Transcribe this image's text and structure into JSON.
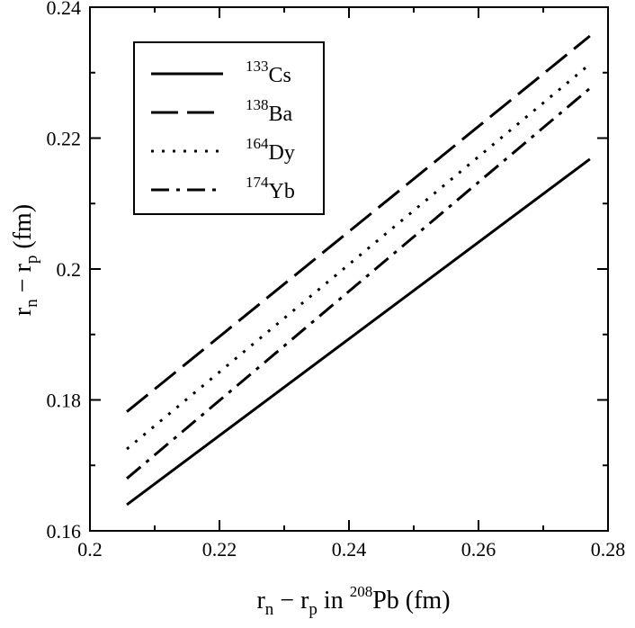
{
  "chart_data": {
    "type": "line",
    "title": "",
    "xlabel": {
      "before": "r",
      "sub1": "n",
      "minus": " − r",
      "sub2": "p",
      "mid": "  in ",
      "sup": "208",
      "after": "Pb  (fm)"
    },
    "ylabel": {
      "before": "r",
      "sub1": "n",
      "minus": " − r",
      "sub2": "p",
      "after": "  (fm)"
    },
    "xlim": [
      0.2,
      0.28
    ],
    "ylim": [
      0.16,
      0.24
    ],
    "xticks": [
      "0.2",
      "0.22",
      "0.24",
      "0.26",
      "0.28"
    ],
    "yticks": [
      "0.16",
      "0.18",
      "0.2",
      "0.22",
      "0.24"
    ],
    "grid": false,
    "legend_position": "top-left",
    "series": [
      {
        "sup": "133",
        "label": "Cs",
        "dash": "solid",
        "x": [
          0.2057,
          0.2772
        ],
        "y": [
          0.164,
          0.2168
        ]
      },
      {
        "sup": "138",
        "label": "Ba",
        "dash": "dashed",
        "x": [
          0.2057,
          0.2772
        ],
        "y": [
          0.1782,
          0.2356
        ]
      },
      {
        "sup": "164",
        "label": "Dy",
        "dash": "dotted",
        "x": [
          0.2057,
          0.2772
        ],
        "y": [
          0.1725,
          0.2313
        ]
      },
      {
        "sup": "174",
        "label": "Yb",
        "dash": "dashdot",
        "x": [
          0.2057,
          0.2772
        ],
        "y": [
          0.168,
          0.2276
        ]
      }
    ]
  }
}
